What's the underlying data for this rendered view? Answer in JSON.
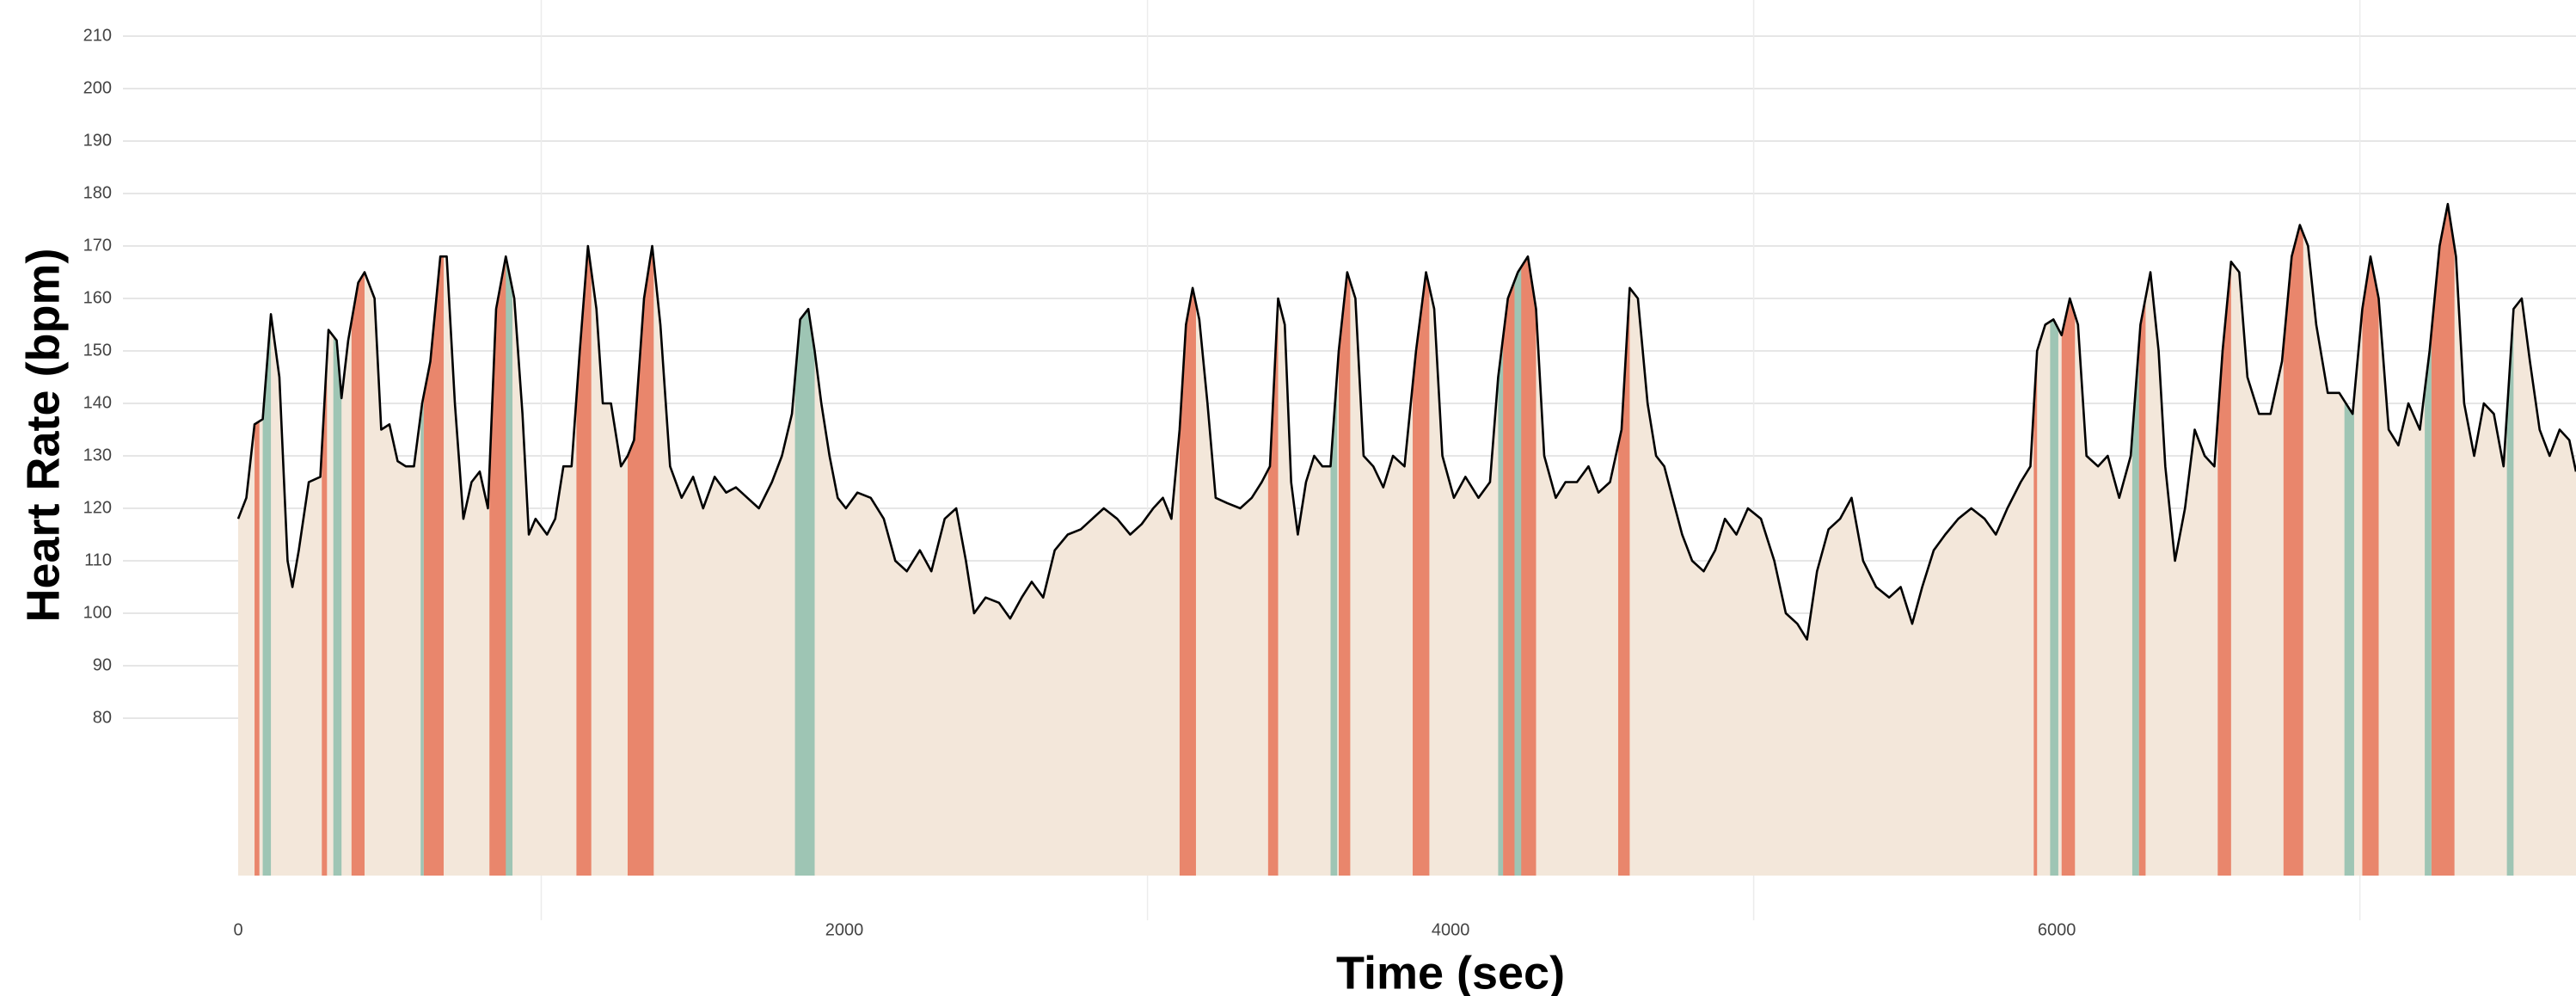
{
  "chart_data": {
    "type": "area",
    "x_label": "Time (sec)",
    "y_label": "Heart Rate (bpm)",
    "xlim": [
      0,
      7713
    ],
    "ylim": [
      50,
      210
    ],
    "xticks": [
      0,
      2000,
      4000,
      6000
    ],
    "x_minor_grid": [
      1000,
      3000,
      5000,
      7000
    ],
    "yticks": [
      80,
      90,
      100,
      110,
      120,
      130,
      140,
      150,
      160,
      170,
      180,
      190,
      200,
      210
    ],
    "grid": true,
    "fill_color": "#f3e7da",
    "line_color": "#000000",
    "x": [
      0,
      27,
      54,
      81,
      108,
      136,
      163,
      179,
      200,
      233,
      271,
      298,
      325,
      341,
      363,
      396,
      417,
      450,
      472,
      499,
      526,
      553,
      580,
      607,
      634,
      667,
      688,
      715,
      743,
      770,
      797,
      824,
      851,
      883,
      911,
      938,
      959,
      981,
      1019,
      1046,
      1073,
      1100,
      1127,
      1154,
      1182,
      1203,
      1230,
      1263,
      1285,
      1306,
      1339,
      1366,
      1393,
      1425,
      1463,
      1501,
      1534,
      1572,
      1610,
      1642,
      1680,
      1718,
      1761,
      1794,
      1827,
      1854,
      1881,
      1902,
      1924,
      1951,
      1978,
      2005,
      2043,
      2087,
      2130,
      2168,
      2206,
      2249,
      2287,
      2331,
      2369,
      2401,
      2428,
      2466,
      2510,
      2547,
      2585,
      2618,
      2656,
      2694,
      2737,
      2780,
      2818,
      2856,
      2900,
      2943,
      2981,
      3019,
      3051,
      3079,
      3106,
      3127,
      3149,
      3171,
      3198,
      3225,
      3263,
      3306,
      3344,
      3377,
      3404,
      3431,
      3453,
      3474,
      3496,
      3523,
      3550,
      3577,
      3604,
      3631,
      3659,
      3686,
      3713,
      3745,
      3778,
      3810,
      3848,
      3886,
      3919,
      3946,
      3973,
      4011,
      4049,
      4092,
      4130,
      4157,
      4189,
      4222,
      4255,
      4282,
      4309,
      4347,
      4379,
      4417,
      4455,
      4488,
      4526,
      4564,
      4591,
      4618,
      4650,
      4678,
      4705,
      4732,
      4764,
      4797,
      4835,
      4873,
      4905,
      4943,
      4981,
      5024,
      5068,
      5106,
      5144,
      5176,
      5209,
      5247,
      5285,
      5323,
      5361,
      5404,
      5447,
      5485,
      5523,
      5556,
      5594,
      5632,
      5675,
      5718,
      5762,
      5799,
      5837,
      5881,
      5913,
      5935,
      5962,
      5989,
      6016,
      6043,
      6070,
      6098,
      6136,
      6168,
      6206,
      6244,
      6276,
      6309,
      6336,
      6358,
      6390,
      6423,
      6455,
      6488,
      6520,
      6547,
      6575,
      6602,
      6629,
      6667,
      6705,
      6743,
      6775,
      6802,
      6829,
      6856,
      6894,
      6932,
      6976,
      7008,
      7035,
      7062,
      7095,
      7127,
      7160,
      7198,
      7230,
      7263,
      7290,
      7317,
      7344,
      7377,
      7409,
      7442,
      7474,
      7507,
      7534,
      7561,
      7593,
      7626,
      7659,
      7691,
      7713
    ],
    "values": [
      118,
      122,
      136,
      137,
      157,
      145,
      110,
      105,
      112,
      125,
      126,
      154,
      152,
      141,
      152,
      163,
      165,
      160,
      135,
      136,
      129,
      128,
      128,
      140,
      148,
      168,
      168,
      140,
      118,
      125,
      127,
      120,
      158,
      168,
      160,
      138,
      115,
      118,
      115,
      118,
      128,
      128,
      150,
      170,
      158,
      140,
      140,
      128,
      130,
      133,
      160,
      170,
      155,
      128,
      122,
      126,
      120,
      126,
      123,
      124,
      122,
      120,
      125,
      130,
      138,
      156,
      158,
      150,
      140,
      130,
      122,
      120,
      123,
      122,
      118,
      110,
      108,
      112,
      108,
      118,
      120,
      110,
      100,
      103,
      102,
      99,
      103,
      106,
      103,
      112,
      115,
      116,
      118,
      120,
      118,
      115,
      117,
      120,
      122,
      118,
      135,
      155,
      162,
      156,
      140,
      122,
      121,
      120,
      122,
      125,
      128,
      160,
      155,
      125,
      115,
      125,
      130,
      128,
      128,
      150,
      165,
      160,
      130,
      128,
      124,
      130,
      128,
      150,
      165,
      158,
      130,
      122,
      126,
      122,
      125,
      145,
      160,
      165,
      168,
      158,
      130,
      122,
      125,
      125,
      128,
      123,
      125,
      135,
      162,
      160,
      140,
      130,
      128,
      122,
      115,
      110,
      108,
      112,
      118,
      115,
      120,
      118,
      110,
      100,
      98,
      95,
      108,
      116,
      118,
      122,
      110,
      105,
      103,
      105,
      98,
      105,
      112,
      115,
      118,
      120,
      118,
      115,
      120,
      125,
      128,
      150,
      155,
      156,
      153,
      160,
      155,
      130,
      128,
      130,
      122,
      130,
      155,
      165,
      150,
      128,
      110,
      120,
      135,
      130,
      128,
      150,
      167,
      165,
      145,
      138,
      138,
      148,
      168,
      174,
      170,
      155,
      142,
      142,
      138,
      158,
      168,
      160,
      135,
      132,
      140,
      135,
      150,
      170,
      178,
      168,
      140,
      130,
      140,
      138,
      128,
      158,
      160,
      148,
      135,
      130,
      135,
      133,
      127
    ],
    "bands": [
      {
        "color": "#e9866c",
        "ranges": [
          [
            54,
            70
          ],
          [
            276,
            293
          ],
          [
            374,
            417
          ],
          [
            612,
            678
          ],
          [
            829,
            894
          ],
          [
            1116,
            1165
          ],
          [
            1285,
            1371
          ],
          [
            3106,
            3160
          ],
          [
            3398,
            3431
          ],
          [
            3631,
            3669
          ],
          [
            3875,
            3930
          ],
          [
            4173,
            4282
          ],
          [
            4553,
            4591
          ],
          [
            5924,
            5935
          ],
          [
            6016,
            6060
          ],
          [
            6271,
            6293
          ],
          [
            6531,
            6575
          ],
          [
            6748,
            6813
          ],
          [
            7008,
            7062
          ],
          [
            7236,
            7312
          ]
        ]
      },
      {
        "color": "#9ec5b4",
        "ranges": [
          [
            81,
            108
          ],
          [
            314,
            341
          ],
          [
            602,
            612
          ],
          [
            883,
            905
          ],
          [
            1837,
            1902
          ],
          [
            3604,
            3626
          ],
          [
            4157,
            4173
          ],
          [
            4211,
            4233
          ],
          [
            5978,
            6005
          ],
          [
            6249,
            6271
          ],
          [
            6949,
            6981
          ],
          [
            7214,
            7236
          ],
          [
            7485,
            7507
          ]
        ]
      }
    ]
  }
}
